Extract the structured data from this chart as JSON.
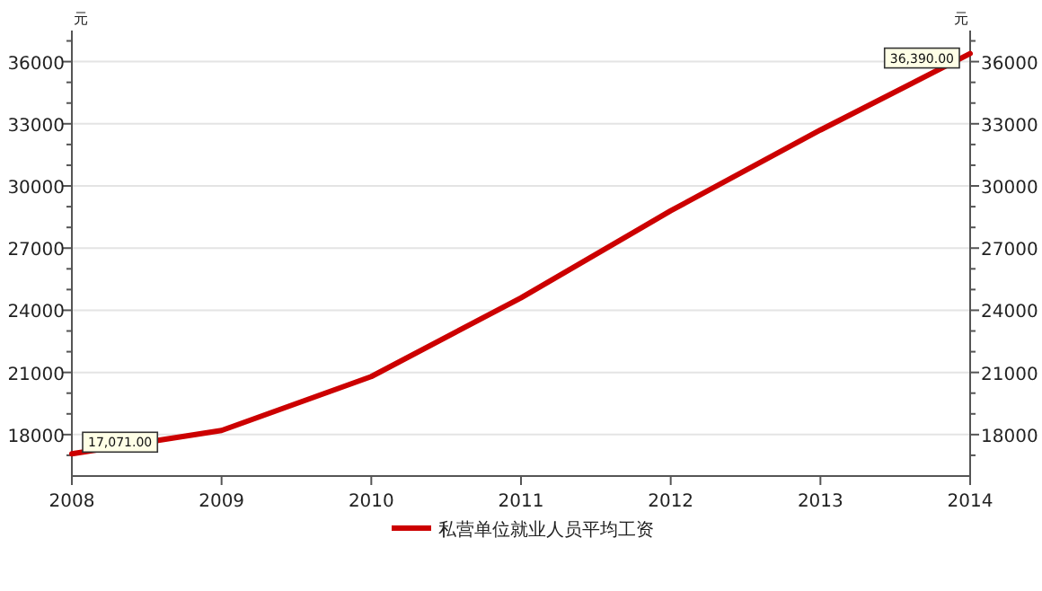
{
  "chart_data": {
    "type": "line",
    "x": [
      2008,
      2009,
      2010,
      2011,
      2012,
      2013,
      2014
    ],
    "series": [
      {
        "name": "私营单位就业人员平均工资",
        "color": "#cc0000",
        "values": [
          17071,
          18200,
          20800,
          24600,
          28800,
          32700,
          36390
        ],
        "value_labels": [
          "17,071.00",
          null,
          null,
          null,
          null,
          null,
          "36,390.00"
        ]
      }
    ],
    "ylabel": "元",
    "y2label": "元",
    "xlim": [
      2008,
      2014
    ],
    "xticks": [
      2008,
      2009,
      2010,
      2011,
      2012,
      2013,
      2014
    ],
    "ylim": [
      16000,
      37500
    ],
    "yticks": [
      {
        "value": 17000,
        "label": null
      },
      18000,
      {
        "value": 19000,
        "label": null
      },
      {
        "value": 20000,
        "label": null
      },
      21000,
      {
        "value": 22000,
        "label": null
      },
      {
        "value": 23000,
        "label": null
      },
      24000,
      {
        "value": 25000,
        "label": null
      },
      {
        "value": 26000,
        "label": null
      },
      27000,
      {
        "value": 28000,
        "label": null
      },
      {
        "value": 29000,
        "label": null
      },
      30000,
      {
        "value": 31000,
        "label": null
      },
      {
        "value": 32000,
        "label": null
      },
      33000,
      {
        "value": 34000,
        "label": null
      },
      {
        "value": 35000,
        "label": null
      },
      36000,
      {
        "value": 37000,
        "label": null
      }
    ],
    "y2lim": [
      16000,
      37500
    ],
    "y2ticks": [
      {
        "value": 17000,
        "label": null
      },
      18000,
      {
        "value": 19000,
        "label": null
      },
      {
        "value": 20000,
        "label": null
      },
      21000,
      {
        "value": 22000,
        "label": null
      },
      {
        "value": 23000,
        "label": null
      },
      24000,
      {
        "value": 25000,
        "label": null
      },
      {
        "value": 26000,
        "label": null
      },
      27000,
      {
        "value": 28000,
        "label": null
      },
      {
        "value": 29000,
        "label": null
      },
      30000,
      {
        "value": 31000,
        "label": null
      },
      {
        "value": 32000,
        "label": null
      },
      33000,
      {
        "value": 34000,
        "label": null
      },
      {
        "value": 35000,
        "label": null
      },
      36000,
      {
        "value": 37000,
        "label": null
      }
    ],
    "grid": "y",
    "legend": "bottom",
    "marker": "none",
    "line_style": "solid"
  }
}
